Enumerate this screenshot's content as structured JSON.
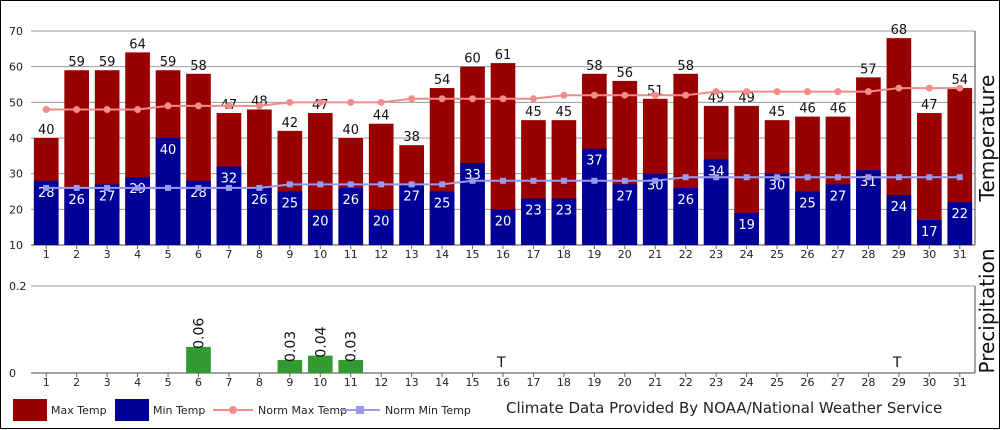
{
  "chart_data": [
    {
      "type": "bar",
      "panel": "temperature",
      "ylabel": "Temperature",
      "ylim": [
        10,
        70
      ],
      "yticks": [
        10,
        20,
        30,
        40,
        50,
        60,
        70
      ],
      "grid": true,
      "categories": [
        "1",
        "2",
        "3",
        "4",
        "5",
        "6",
        "7",
        "8",
        "9",
        "10",
        "11",
        "12",
        "13",
        "14",
        "15",
        "16",
        "17",
        "18",
        "19",
        "20",
        "21",
        "22",
        "23",
        "24",
        "25",
        "26",
        "27",
        "28",
        "29",
        "30",
        "31"
      ],
      "series": [
        {
          "name": "Max Temp",
          "kind": "bar",
          "color": "#990000",
          "values": [
            40,
            59,
            59,
            64,
            59,
            58,
            47,
            48,
            42,
            47,
            40,
            44,
            38,
            54,
            60,
            61,
            45,
            45,
            58,
            56,
            51,
            58,
            49,
            49,
            45,
            46,
            46,
            57,
            68,
            47,
            54
          ]
        },
        {
          "name": "Min Temp",
          "kind": "bar",
          "color": "#000099",
          "values": [
            28,
            26,
            27,
            29,
            40,
            28,
            32,
            26,
            25,
            20,
            26,
            20,
            27,
            25,
            33,
            20,
            23,
            23,
            37,
            27,
            30,
            26,
            34,
            19,
            30,
            25,
            27,
            31,
            24,
            17,
            22
          ]
        },
        {
          "name": "Norm Max Temp",
          "kind": "line",
          "color": "#f28b8b",
          "values": [
            48,
            48,
            48,
            48,
            49,
            49,
            49,
            49,
            50,
            50,
            50,
            50,
            51,
            51,
            51,
            51,
            51,
            52,
            52,
            52,
            52,
            52,
            53,
            53,
            53,
            53,
            53,
            53,
            54,
            54,
            54
          ]
        },
        {
          "name": "Norm Min Temp",
          "kind": "line",
          "color": "#9999ee",
          "values": [
            26,
            26,
            26,
            26,
            26,
            26,
            26,
            26,
            27,
            27,
            27,
            27,
            27,
            27,
            28,
            28,
            28,
            28,
            28,
            28,
            28,
            29,
            29,
            29,
            29,
            29,
            29,
            29,
            29,
            29,
            29
          ]
        }
      ]
    },
    {
      "type": "bar",
      "panel": "precipitation",
      "ylabel": "Precipitation",
      "ylim": [
        0,
        0.2
      ],
      "yticks": [
        "0",
        "0.2"
      ],
      "grid": true,
      "categories": [
        "1",
        "2",
        "3",
        "4",
        "5",
        "6",
        "7",
        "8",
        "9",
        "10",
        "11",
        "12",
        "13",
        "14",
        "15",
        "16",
        "17",
        "18",
        "19",
        "20",
        "21",
        "22",
        "23",
        "24",
        "25",
        "26",
        "27",
        "28",
        "29",
        "30",
        "31"
      ],
      "series": [
        {
          "name": "Precipitation",
          "kind": "bar",
          "color": "#339933",
          "values": [
            null,
            null,
            null,
            null,
            null,
            0.06,
            null,
            null,
            0.03,
            0.04,
            0.03,
            null,
            null,
            null,
            null,
            null,
            null,
            null,
            null,
            null,
            null,
            null,
            null,
            null,
            null,
            null,
            null,
            null,
            null,
            null,
            null
          ],
          "labels": [
            "",
            "",
            "",
            "",
            "",
            "0.06",
            "",
            "",
            "0.03",
            "0.04",
            "0.03",
            "",
            "",
            "",
            "",
            "T",
            "",
            "",
            "",
            "",
            "",
            "",
            "",
            "",
            "",
            "",
            "",
            "",
            "T",
            "",
            ""
          ]
        }
      ]
    }
  ],
  "legend": {
    "max": "Max Temp",
    "min": "Min Temp",
    "normmax": "Norm Max Temp",
    "normmin": "Norm Min Temp"
  },
  "credit": "Climate Data Provided By NOAA/National Weather Service"
}
